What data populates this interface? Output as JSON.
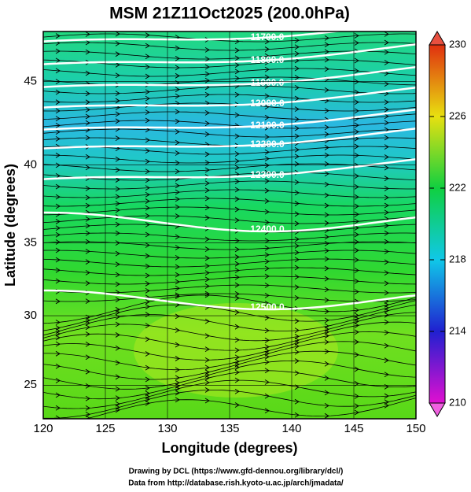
{
  "title": "MSM 21Z11Oct2025 (200.0hPa)",
  "map": {
    "xlabel": "Longitude (degrees)",
    "ylabel": "Latitude  (degrees)",
    "xlim": [
      120,
      150
    ],
    "ylim": [
      22.5,
      47.8
    ],
    "xticks": [
      120,
      125,
      130,
      135,
      140,
      145,
      150
    ],
    "yticks": [
      25,
      30,
      35,
      40,
      45
    ],
    "contour_labels": [
      "11700.0",
      "11800.0",
      "11900.0",
      "12000.0",
      "12100.0",
      "12200.0",
      "12300.0",
      "12400.0",
      "12500.0"
    ]
  },
  "colorbar": {
    "lim": [
      210,
      230
    ],
    "ticks": [
      210,
      214,
      218,
      222,
      226,
      230
    ]
  },
  "credits": [
    "Drawing by DCL (https://www.gfd-dennou.org/library/dcl/)",
    "Data from http://database.rish.kyoto-u.ac.jp/arch/jmadata/"
  ]
}
